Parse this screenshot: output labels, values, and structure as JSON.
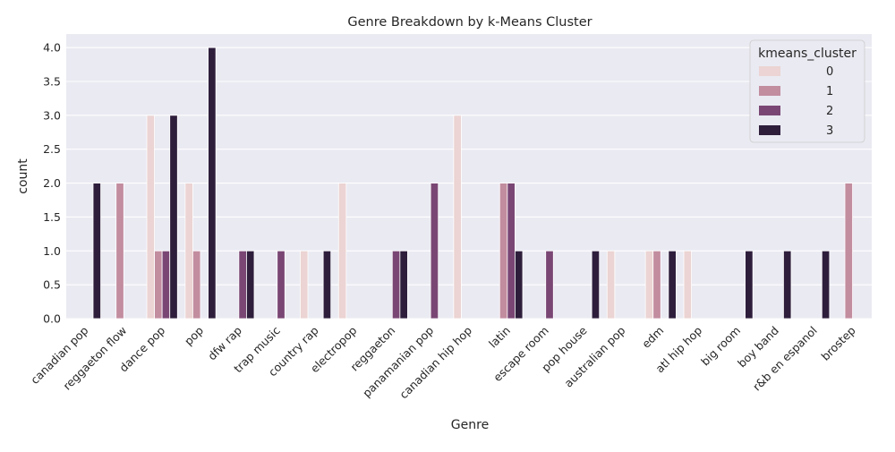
{
  "chart_data": {
    "type": "bar",
    "title": "Genre Breakdown by k-Means Cluster",
    "xlabel": "Genre",
    "ylabel": "count",
    "ylim": [
      0,
      4.2
    ],
    "yticks": [
      0.0,
      0.5,
      1.0,
      1.5,
      2.0,
      2.5,
      3.0,
      3.5,
      4.0
    ],
    "ytick_labels": [
      "0.0",
      "0.5",
      "1.0",
      "1.5",
      "2.0",
      "2.5",
      "3.0",
      "3.5",
      "4.0"
    ],
    "grid": true,
    "legend_placement": "top-right",
    "legend_title": "kmeans_cluster",
    "categories": [
      "canadian pop",
      "reggaeton flow",
      "dance pop",
      "pop",
      "dfw rap",
      "trap music",
      "country rap",
      "electropop",
      "reggaeton",
      "panamanian pop",
      "canadian hip hop",
      "latin",
      "escape room",
      "pop house",
      "australian pop",
      "edm",
      "atl hip hop",
      "big room",
      "boy band",
      "r&b en espanol",
      "brostep"
    ],
    "series": [
      {
        "name": "0",
        "color": "#ebd4d3",
        "values": [
          0,
          0,
          3,
          2,
          0,
          0,
          1,
          2,
          0,
          0,
          3,
          0,
          0,
          0,
          1,
          1,
          1,
          0,
          0,
          0,
          0
        ]
      },
      {
        "name": "1",
        "color": "#c28d9f",
        "values": [
          0,
          2,
          1,
          1,
          0,
          0,
          0,
          0,
          0,
          0,
          0,
          2,
          0,
          0,
          0,
          1,
          0,
          0,
          0,
          0,
          2
        ]
      },
      {
        "name": "2",
        "color": "#7a4774",
        "values": [
          0,
          0,
          1,
          0,
          1,
          1,
          0,
          0,
          1,
          2,
          0,
          2,
          1,
          0,
          0,
          0,
          0,
          0,
          0,
          0,
          0
        ]
      },
      {
        "name": "3",
        "color": "#2e1e3c",
        "values": [
          2,
          0,
          3,
          4,
          1,
          0,
          1,
          0,
          1,
          0,
          0,
          1,
          0,
          1,
          0,
          1,
          0,
          1,
          1,
          1,
          0
        ]
      }
    ],
    "colors": {
      "plot_background": "#eaeaf2",
      "grid": "#ffffff",
      "text": "#262626"
    }
  }
}
